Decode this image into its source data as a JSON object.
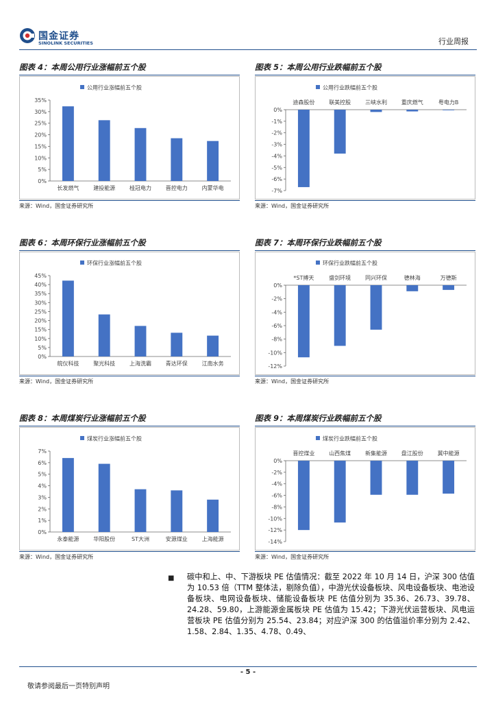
{
  "header": {
    "logo_cn": "国金证券",
    "logo_en": "SINOLINK SECURITIES",
    "category": "行业周报",
    "accent": "#1f4e8c"
  },
  "bar_color": "#4472c4",
  "panels": [
    {
      "title": "图表 4：本周公用行业涨幅前五个股",
      "source": "来源：Wind，国金证券研究所",
      "chart_data": {
        "type": "bar",
        "legend": "公用行业涨幅前五个股",
        "legend_position": "top-center",
        "categories": [
          "长发燃气",
          "建投能源",
          "桂冠电力",
          "晋控电力",
          "内蒙华电"
        ],
        "values": [
          32.3,
          26.3,
          22.9,
          18.5,
          17.3
        ],
        "ticks": [
          "0%",
          "5%",
          "10%",
          "15%",
          "20%",
          "25%",
          "30%",
          "35%"
        ],
        "ylim": [
          0,
          35
        ],
        "category_axis": "bottom"
      }
    },
    {
      "title": "图表 5：本周公用行业跌幅前五个股",
      "source": "来源：Wind，国金证券研究所",
      "chart_data": {
        "type": "bar",
        "legend": "公用行业跌幅前五个股",
        "legend_position": "top-center",
        "categories": [
          "迪森股份",
          "联美控股",
          "三峡水利",
          "重庆燃气",
          "粤电力B"
        ],
        "values": [
          -6.7,
          -3.8,
          -0.2,
          -0.15,
          -0.05
        ],
        "ticks": [
          "-7%",
          "-6%",
          "-5%",
          "-4%",
          "-3%",
          "-2%",
          "-1%",
          "0%"
        ],
        "ylim": [
          -7,
          0
        ],
        "category_axis": "top"
      }
    },
    {
      "title": "图表 6：本周环保行业涨幅前五个股",
      "source": "来源：Wind，国金证券研究所",
      "chart_data": {
        "type": "bar",
        "legend": "环保行业涨幅前五个股",
        "legend_position": "top-center",
        "categories": [
          "皖仪科技",
          "聚光科技",
          "上海洗霸",
          "青达环保",
          "江南水务"
        ],
        "values": [
          42.2,
          23.4,
          17.0,
          13.2,
          11.6
        ],
        "ticks": [
          "0%",
          "5%",
          "10%",
          "15%",
          "20%",
          "25%",
          "30%",
          "35%",
          "40%",
          "45%"
        ],
        "ylim": [
          0,
          45
        ],
        "category_axis": "bottom"
      }
    },
    {
      "title": "图表 7：本周环保行业跌幅前五个股",
      "source": "来源：Wind，国金证券研究所",
      "chart_data": {
        "type": "bar",
        "legend": "环保行业跌幅前五个股",
        "legend_position": "top-center",
        "categories": [
          "*ST搏天",
          "盛剑环境",
          "同兴环保",
          "德林海",
          "万德斯"
        ],
        "values": [
          -10.7,
          -9.0,
          -6.6,
          -0.9,
          -0.7
        ],
        "ticks": [
          "-12%",
          "-10%",
          "-8%",
          "-6%",
          "-4%",
          "-2%",
          "0%"
        ],
        "ylim": [
          -12,
          0
        ],
        "category_axis": "top"
      }
    },
    {
      "title": "图表 8：本周煤炭行业涨幅前五个股",
      "source": "来源：Wind，国金证券研究所",
      "chart_data": {
        "type": "bar",
        "legend": "煤炭行业涨幅前五个股",
        "legend_position": "top-center",
        "categories": [
          "永泰能源",
          "华阳股份",
          "ST大洲",
          "安源煤业",
          "上海能源"
        ],
        "values": [
          6.4,
          5.9,
          3.7,
          3.6,
          2.8
        ],
        "ticks": [
          "0%",
          "1%",
          "2%",
          "3%",
          "4%",
          "5%",
          "6%",
          "7%"
        ],
        "ylim": [
          0,
          7
        ],
        "category_axis": "bottom"
      }
    },
    {
      "title": "图表 9：本周煤炭行业跌幅前五个股",
      "source": "来源：Wind，国金证券研究所",
      "chart_data": {
        "type": "bar",
        "legend": "煤炭行业跌幅前五个股",
        "legend_position": "top-center",
        "categories": [
          "晋控煤业",
          "山西焦煤",
          "新集能源",
          "盘江股份",
          "冀中能源"
        ],
        "values": [
          -12.0,
          -10.7,
          -5.9,
          -5.9,
          -5.7
        ],
        "ticks": [
          "-14%",
          "-12%",
          "-10%",
          "-8%",
          "-6%",
          "-4%",
          "-2%",
          "0%"
        ],
        "ylim": [
          -14,
          0
        ],
        "category_axis": "top"
      }
    }
  ],
  "bullet_paragraph": "碳中和上、中、下游板块 PE 估值情况：截至 2022 年 10 月 14 日，沪深 300 估值为 10.53 倍（TTM 整体法，剔除负值），中游光伏设备板块、风电设备板块、电池设备板块、电网设备板块、储能设备板块 PE 估值分别为 35.36、26.73、39.78、24.28、59.80，上游能源金属板块 PE 估值为 15.42；下游光伏运营板块、风电运营板块 PE 估值分别为 25.54、23.84；对应沪深 300 的估值溢价率分别为 2.42、1.58、2.84、1.35、4.78、0.49、",
  "footer": {
    "page": "- 5 -",
    "disclaimer": "敬请参阅最后一页特别声明"
  }
}
